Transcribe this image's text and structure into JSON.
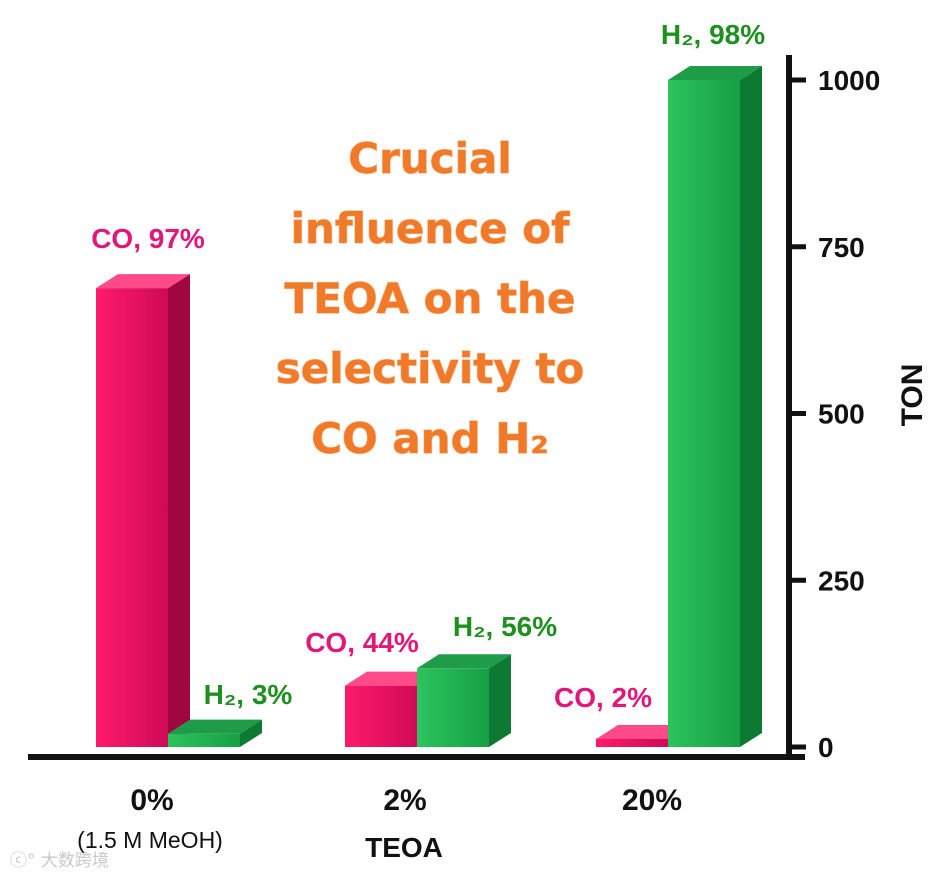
{
  "chart_data": {
    "type": "bar",
    "categories": [
      "0%",
      "2%",
      "20%"
    ],
    "category_sublabels": [
      "(1.5 M MeOH)",
      "",
      ""
    ],
    "xlabel": "TEOA",
    "ylabel": "TON",
    "ylim": [
      0,
      1000
    ],
    "yticks": [
      0,
      250,
      500,
      750,
      1000
    ],
    "y_axis_position": "right",
    "grid": false,
    "legend": "none",
    "series": [
      {
        "name": "CO",
        "color": "#e8005f",
        "values": [
          688,
          92,
          12
        ],
        "labels": [
          "CO, 97%",
          "CO, 44%",
          "CO, 2%"
        ]
      },
      {
        "name": "H2",
        "color": "#1fb14f",
        "values": [
          20,
          118,
          1000
        ],
        "labels": [
          "H₂, 3%",
          "H₂, 56%",
          "H₂, 98%"
        ]
      }
    ],
    "annotation": [
      "Crucial",
      "influence of",
      "TEOA on the",
      "selectivity to",
      "CO and H₂"
    ],
    "label_colors": {
      "CO": "#e3177a",
      "H2": "#1f8f1f"
    }
  },
  "watermark": "大数跨境"
}
